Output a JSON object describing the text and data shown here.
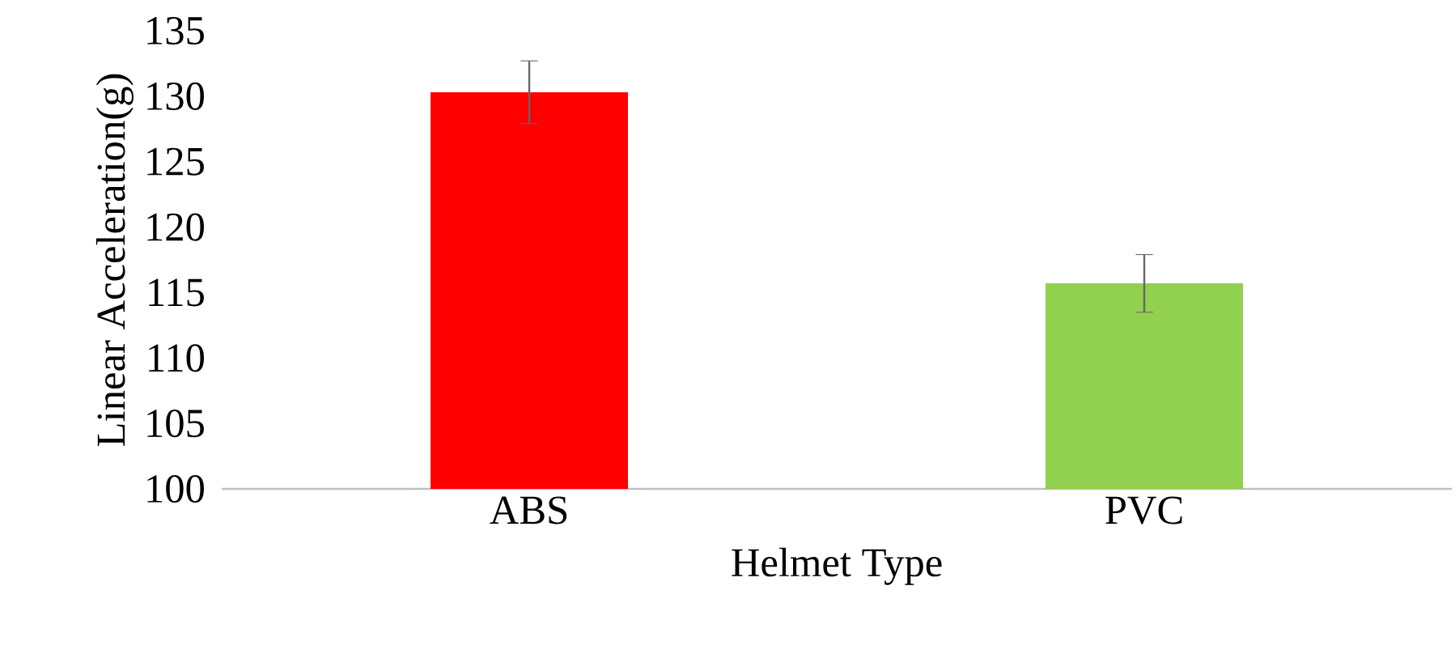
{
  "chart_data": {
    "type": "bar",
    "xlabel": "Helmet Type",
    "ylabel": "Linear Acceleration(g)",
    "categories": [
      "ABS",
      "PVC"
    ],
    "values": [
      130.3,
      115.7
    ],
    "errors": [
      2.4,
      2.2
    ],
    "colors": [
      "#ff0000",
      "#92d050"
    ],
    "ylim": [
      100,
      135
    ],
    "yticks": [
      100,
      105,
      110,
      115,
      120,
      125,
      130,
      135
    ]
  }
}
